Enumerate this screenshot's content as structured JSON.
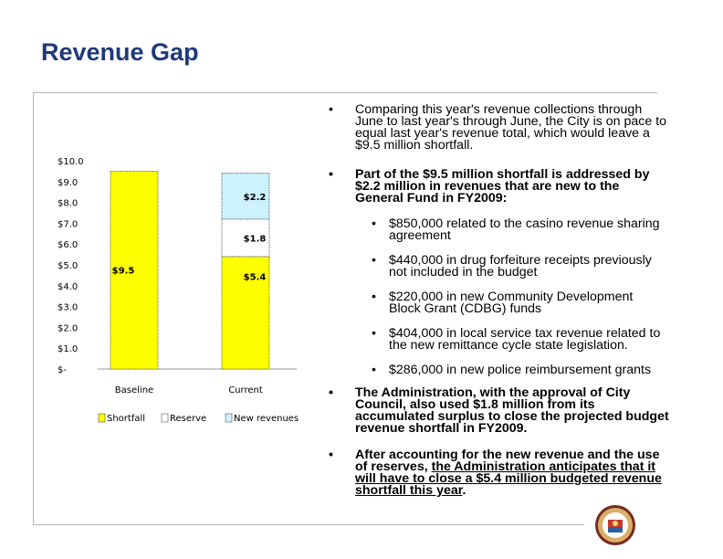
{
  "slide": {
    "title": "Revenue Gap"
  },
  "chart_data": {
    "type": "bar",
    "stacked": true,
    "categories": [
      "Baseline",
      "Current"
    ],
    "ytick_labels": [
      "$10.0",
      "$9.0",
      "$8.0",
      "$7.0",
      "$6.0",
      "$5.0",
      "$4.0",
      "$3.0",
      "$2.0",
      "$1.0",
      "$-"
    ],
    "ylim": [
      0,
      10
    ],
    "series": [
      {
        "name": "Shortfall",
        "color": "#ffff00",
        "values": [
          9.5,
          5.4
        ]
      },
      {
        "name": "Reserve",
        "color": "#ffffff",
        "values": [
          0,
          1.8
        ]
      },
      {
        "name": "New revenues",
        "color": "#ccf2ff",
        "values": [
          0,
          2.2
        ]
      }
    ],
    "data_labels": [
      {
        "category": "Baseline",
        "series": "Shortfall",
        "text": "$9.5"
      },
      {
        "category": "Current",
        "series": "Shortfall",
        "text": "$5.4"
      },
      {
        "category": "Current",
        "series": "Reserve",
        "text": "$1.8"
      },
      {
        "category": "Current",
        "series": "New revenues",
        "text": "$2.2"
      }
    ],
    "legend_position": "bottom"
  },
  "bullets": {
    "b1": "Comparing this year's revenue collections through June to last year's through June, the City is on pace to equal last year's revenue total, which would leave a $9.5 million shortfall.",
    "b2": "Part of the $9.5 million shortfall is addressed by $2.2 million in revenues that are new to the General Fund in FY2009:",
    "s1": "$850,000 related to the casino revenue sharing agreement",
    "s2": "$440,000 in drug forfeiture receipts previously not included in the budget",
    "s3": "$220,000 in new Community Development Block Grant (CDBG) funds",
    "s4": "$404,000 in local service tax revenue related to the new remittance cycle state legislation.",
    "s5": "$286,000 in new police reimbursement grants",
    "b3": "The Administration, with the approval of City Council, also used $1.8 million from its accumulated surplus to close the projected budget revenue shortfall in FY2009.",
    "b4_part1": "After accounting for the new revenue and the use of reserves, ",
    "b4_part2": "the Administration anticipates that it will have to close a $5.4 million budgeted revenue shortfall this year",
    "b4_part3": ".",
    "bullet_char": "•"
  }
}
